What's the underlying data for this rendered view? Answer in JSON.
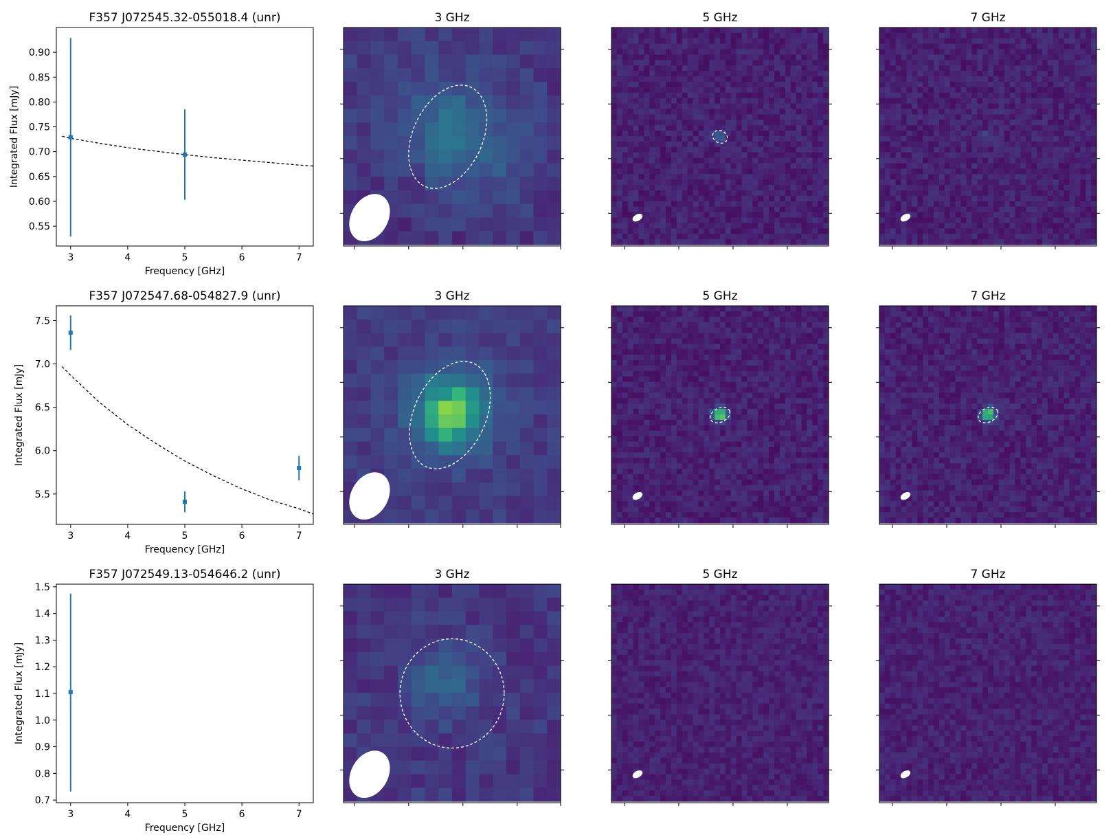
{
  "colors": {
    "errorbar": "#1f77b4",
    "model": "#000000",
    "contour": "#ffffff",
    "beam": "#ffffff",
    "colormap": "viridis"
  },
  "chart_data": [
    {
      "type": "scatter",
      "title": "F357 J072545.32-055018.4 (unr)",
      "xlabel": "Frequency [GHz]",
      "ylabel": "Integrated Flux [mJy]",
      "xlim": [
        2.75,
        7.25
      ],
      "ylim": [
        0.51,
        0.95
      ],
      "xticks": [
        3,
        4,
        5,
        6,
        7
      ],
      "yticks": [
        0.55,
        0.6,
        0.65,
        0.7,
        0.75,
        0.8,
        0.85,
        0.9
      ],
      "ytick_labels": [
        "0.55",
        "0.60",
        "0.65",
        "0.70",
        "0.75",
        "0.80",
        "0.85",
        "0.90"
      ],
      "points": [
        {
          "x": 3,
          "y": 0.729,
          "yerr_low": 0.529,
          "yerr_high": 0.929
        },
        {
          "x": 5,
          "y": 0.694,
          "yerr_low": 0.603,
          "yerr_high": 0.785
        }
      ],
      "model": {
        "x": [
          2.85,
          3,
          3.5,
          4,
          4.5,
          5,
          5.5,
          6,
          6.5,
          7,
          7.25
        ],
        "y": [
          0.731,
          0.727,
          0.717,
          0.708,
          0.701,
          0.694,
          0.688,
          0.683,
          0.678,
          0.673,
          0.671
        ]
      }
    },
    {
      "type": "heatmap",
      "title": "3 GHz",
      "grid": 16,
      "background": 0.16,
      "noise": 0.07,
      "seed": 11,
      "blobs": [
        [
          0.5,
          0.48,
          0.12,
          0.22
        ],
        [
          0.38,
          0.3,
          0.35,
          0.1
        ],
        [
          0.7,
          0.62,
          0.2,
          0.12
        ]
      ],
      "contours": [
        {
          "cx": 0.48,
          "cy": 0.5,
          "rx": 0.16,
          "ry": 0.25,
          "angle": 25
        }
      ],
      "beam": {
        "cx": 0.12,
        "cy": 0.87,
        "rx": 0.085,
        "ry": 0.115,
        "angle": 30
      }
    },
    {
      "type": "heatmap",
      "title": "5 GHz",
      "grid": 40,
      "background": 0.12,
      "noise": 0.07,
      "seed": 23,
      "blobs": [
        [
          0.5,
          0.5,
          0.02,
          0.28
        ]
      ],
      "contours": [
        {
          "cx": 0.5,
          "cy": 0.5,
          "rx": 0.035,
          "ry": 0.028,
          "angle": 25
        }
      ],
      "beam": {
        "cx": 0.12,
        "cy": 0.87,
        "rx": 0.025,
        "ry": 0.015,
        "angle": -30
      }
    },
    {
      "type": "heatmap",
      "title": "7 GHz",
      "grid": 40,
      "background": 0.12,
      "noise": 0.07,
      "seed": 37,
      "blobs": [
        [
          0.5,
          0.5,
          0.013,
          0.3
        ]
      ],
      "contours": [],
      "beam": {
        "cx": 0.12,
        "cy": 0.87,
        "rx": 0.025,
        "ry": 0.015,
        "angle": -30
      }
    },
    {
      "type": "scatter",
      "title": "F357 J072547.68-054827.9 (unr)",
      "xlabel": "Frequency [GHz]",
      "ylabel": "Integrated Flux [mJy]",
      "xlim": [
        2.75,
        7.25
      ],
      "ylim": [
        5.15,
        7.67
      ],
      "xticks": [
        3,
        4,
        5,
        6,
        7
      ],
      "yticks": [
        5.5,
        6.0,
        6.5,
        7.0,
        7.5
      ],
      "ytick_labels": [
        "5.5",
        "6.0",
        "6.5",
        "7.0",
        "7.5"
      ],
      "points": [
        {
          "x": 3,
          "y": 7.36,
          "yerr_low": 7.16,
          "yerr_high": 7.56
        },
        {
          "x": 5,
          "y": 5.41,
          "yerr_low": 5.29,
          "yerr_high": 5.53
        },
        {
          "x": 7,
          "y": 5.8,
          "yerr_low": 5.66,
          "yerr_high": 5.94
        }
      ],
      "model": {
        "x": [
          2.85,
          3,
          3.5,
          4,
          4.5,
          5,
          5.5,
          6,
          6.5,
          7,
          7.25
        ],
        "y": [
          6.97,
          6.87,
          6.56,
          6.3,
          6.08,
          5.88,
          5.71,
          5.56,
          5.43,
          5.33,
          5.27
        ]
      }
    },
    {
      "type": "heatmap",
      "title": "3 GHz",
      "grid": 16,
      "background": 0.22,
      "noise": 0.06,
      "seed": 51,
      "blobs": [
        [
          0.5,
          0.48,
          0.13,
          0.55
        ],
        [
          0.45,
          0.55,
          0.07,
          0.12
        ]
      ],
      "contours": [
        {
          "cx": 0.49,
          "cy": 0.5,
          "rx": 0.165,
          "ry": 0.26,
          "angle": 25
        }
      ],
      "beam": {
        "cx": 0.12,
        "cy": 0.87,
        "rx": 0.085,
        "ry": 0.115,
        "angle": 30
      }
    },
    {
      "type": "heatmap",
      "title": "5 GHz",
      "grid": 40,
      "background": 0.12,
      "noise": 0.07,
      "seed": 63,
      "blobs": [
        [
          0.5,
          0.5,
          0.022,
          0.85
        ]
      ],
      "contours": [
        {
          "cx": 0.5,
          "cy": 0.5,
          "rx": 0.048,
          "ry": 0.032,
          "angle": -25
        }
      ],
      "beam": {
        "cx": 0.12,
        "cy": 0.87,
        "rx": 0.025,
        "ry": 0.015,
        "angle": -30
      }
    },
    {
      "type": "heatmap",
      "title": "7 GHz",
      "grid": 40,
      "background": 0.12,
      "noise": 0.07,
      "seed": 79,
      "blobs": [
        [
          0.5,
          0.5,
          0.022,
          0.85
        ]
      ],
      "contours": [
        {
          "cx": 0.5,
          "cy": 0.5,
          "rx": 0.048,
          "ry": 0.032,
          "angle": -25
        }
      ],
      "beam": {
        "cx": 0.12,
        "cy": 0.87,
        "rx": 0.025,
        "ry": 0.015,
        "angle": -30
      }
    },
    {
      "type": "scatter",
      "title": "F357 J072549.13-054646.2 (unr)",
      "xlabel": "Frequency [GHz]",
      "ylabel": "Integrated Flux [mJy]",
      "xlim": [
        2.75,
        7.25
      ],
      "ylim": [
        0.69,
        1.51
      ],
      "xticks": [
        3,
        4,
        5,
        6,
        7
      ],
      "yticks": [
        0.7,
        0.8,
        0.9,
        1.0,
        1.1,
        1.2,
        1.3,
        1.4,
        1.5
      ],
      "ytick_labels": [
        "0.7",
        "0.8",
        "0.9",
        "1.0",
        "1.1",
        "1.2",
        "1.3",
        "1.4",
        "1.5"
      ],
      "points": [
        {
          "x": 3,
          "y": 1.105,
          "yerr_low": 0.732,
          "yerr_high": 1.475
        }
      ],
      "model": null
    },
    {
      "type": "heatmap",
      "title": "3 GHz",
      "grid": 16,
      "background": 0.2,
      "noise": 0.07,
      "seed": 91,
      "blobs": [
        [
          0.48,
          0.45,
          0.12,
          0.2
        ]
      ],
      "contours": [
        {
          "cx": 0.5,
          "cy": 0.5,
          "rx": 0.24,
          "ry": 0.25,
          "angle": 0
        }
      ],
      "beam": {
        "cx": 0.12,
        "cy": 0.87,
        "rx": 0.085,
        "ry": 0.115,
        "angle": 30
      }
    },
    {
      "type": "heatmap",
      "title": "5 GHz",
      "grid": 40,
      "background": 0.12,
      "noise": 0.06,
      "seed": 103,
      "blobs": [],
      "contours": [],
      "beam": {
        "cx": 0.12,
        "cy": 0.87,
        "rx": 0.025,
        "ry": 0.015,
        "angle": -30
      }
    },
    {
      "type": "heatmap",
      "title": "7 GHz",
      "grid": 40,
      "background": 0.12,
      "noise": 0.06,
      "seed": 117,
      "blobs": [],
      "contours": [],
      "beam": {
        "cx": 0.12,
        "cy": 0.87,
        "rx": 0.025,
        "ry": 0.015,
        "angle": -30
      }
    }
  ]
}
